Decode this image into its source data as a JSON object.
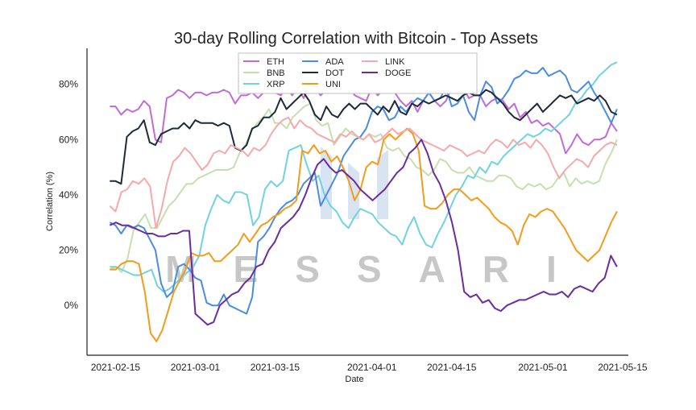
{
  "chart_data": {
    "type": "line",
    "title": "30-day Rolling Correlation with Bitcoin - Top Assets",
    "xlabel": "Date",
    "ylabel": "Correlation (%)",
    "ylim": [
      -18,
      93
    ],
    "yticks": [
      0,
      20,
      40,
      60,
      80
    ],
    "ytick_labels": [
      "0%",
      "20%",
      "40%",
      "60%",
      "80%"
    ],
    "xlim": [
      "2021-02-10",
      "2021-05-16"
    ],
    "xticks": [
      "2021-02-15",
      "2021-03-01",
      "2021-03-15",
      "2021-04-01",
      "2021-04-15",
      "2021-05-01",
      "2021-05-15"
    ],
    "grid": false,
    "legend_position": "top-center",
    "legend_columns": 4,
    "watermark": "MESSARI",
    "x_start": "2021-02-14",
    "x_end": "2021-05-14",
    "series": [
      {
        "name": "ETH",
        "color": "#c06bd8",
        "values": [
          72,
          72,
          69,
          71,
          70,
          71,
          74,
          72,
          60,
          59,
          75,
          76,
          78,
          77,
          75,
          77,
          77,
          76,
          77,
          77,
          78,
          77,
          73,
          76,
          76,
          77,
          75,
          77,
          78,
          77,
          76,
          79,
          76,
          79,
          75,
          79,
          79,
          76,
          78,
          82,
          80,
          79,
          79,
          76,
          75,
          74,
          79,
          76,
          78,
          81,
          77,
          74,
          72,
          74,
          70,
          74,
          77,
          74,
          72,
          74,
          79,
          80,
          79,
          75,
          76,
          76,
          72,
          74,
          75,
          74,
          71,
          73,
          68,
          70,
          66,
          67,
          65,
          66,
          64,
          62,
          55,
          58,
          62,
          59,
          58,
          60,
          60,
          61,
          66,
          63
        ]
      },
      {
        "name": "BNB",
        "color": "#c5dfae",
        "values": [
          13,
          14,
          12,
          17,
          27,
          30,
          33,
          28,
          28,
          32,
          36,
          38,
          41,
          44,
          44,
          46,
          47,
          48,
          49,
          49,
          49,
          50,
          55,
          58,
          63,
          66,
          68,
          71,
          66,
          66,
          64,
          68,
          70,
          72,
          73,
          67,
          65,
          66,
          58,
          61,
          64,
          62,
          61,
          60,
          62,
          61,
          62,
          57,
          56,
          57,
          54,
          53,
          50,
          49,
          47,
          49,
          53,
          52,
          49,
          48,
          48,
          50,
          47,
          46,
          45,
          45,
          47,
          47,
          46,
          43,
          42,
          44,
          43,
          44,
          42,
          43,
          46,
          48,
          43,
          46,
          44,
          45,
          44,
          45,
          51,
          55,
          60
        ]
      },
      {
        "name": "XRP",
        "color": "#6fd3df",
        "values": [
          14,
          14,
          13,
          12,
          11,
          11,
          12,
          13,
          7,
          5,
          6,
          8,
          10,
          12,
          14,
          18,
          29,
          35,
          40,
          38,
          37,
          41,
          41,
          40,
          29,
          32,
          42,
          45,
          43,
          45,
          56,
          57,
          58,
          51,
          45,
          47,
          40,
          36,
          34,
          30,
          28,
          32,
          35,
          34,
          33,
          30,
          28,
          26,
          25,
          22,
          28,
          32,
          26,
          22,
          21,
          26,
          30,
          35,
          40,
          43,
          47,
          46,
          50,
          48,
          52,
          51,
          54,
          56,
          58,
          60,
          62,
          61,
          62,
          64,
          63,
          65,
          67,
          69,
          73,
          75,
          78,
          80,
          83,
          85,
          87,
          88
        ]
      },
      {
        "name": "ADA",
        "color": "#4b8be5",
        "values": [
          30,
          29,
          26,
          29,
          28,
          29,
          28,
          24,
          20,
          8,
          3,
          5,
          14,
          15,
          13,
          10,
          9,
          1,
          0,
          0,
          4,
          0,
          -1,
          -2,
          -3,
          3,
          23,
          25,
          28,
          32,
          35,
          37,
          38,
          40,
          44,
          46,
          48,
          36,
          40,
          44,
          48,
          54,
          57,
          60,
          61,
          64,
          70,
          72,
          71,
          67,
          68,
          72,
          70,
          73,
          75,
          74,
          77,
          74,
          75,
          79,
          72,
          73,
          76,
          70,
          67,
          76,
          81,
          79,
          73,
          75,
          78,
          82,
          83,
          85,
          84,
          84,
          86,
          83,
          84,
          85,
          83,
          78,
          77,
          79,
          81,
          77,
          74,
          70,
          66,
          71
        ]
      },
      {
        "name": "DOT",
        "color": "#1e2a3a",
        "values": [
          45,
          45,
          44,
          61,
          63,
          64,
          67,
          59,
          58,
          62,
          63,
          64,
          64,
          66,
          64,
          67,
          66,
          66,
          66,
          65,
          66,
          65,
          57,
          56,
          58,
          64,
          65,
          68,
          68,
          70,
          75,
          71,
          73,
          75,
          77,
          74,
          69,
          67,
          72,
          69,
          68,
          71,
          73,
          71,
          73,
          73,
          71,
          69,
          72,
          70,
          74,
          70,
          69,
          73,
          72,
          74,
          73,
          74,
          75,
          76,
          75,
          74,
          76,
          77,
          76,
          76,
          78,
          77,
          75,
          73,
          70,
          68,
          67,
          69,
          71,
          73,
          70,
          72,
          74,
          76,
          75,
          76,
          73,
          74,
          75,
          74,
          76,
          74,
          70,
          69
        ]
      },
      {
        "name": "UNI",
        "color": "#f29c1c",
        "values": [
          13,
          13,
          15,
          16,
          16,
          15,
          5,
          -10,
          -13,
          -9,
          -2,
          5,
          9,
          13,
          19,
          18,
          18,
          19,
          16,
          16,
          18,
          20,
          22,
          26,
          23,
          26,
          29,
          30,
          32,
          33,
          35,
          36,
          38,
          56,
          55,
          58,
          55,
          56,
          52,
          54,
          50,
          45,
          38,
          42,
          50,
          52,
          51,
          60,
          62,
          60,
          62,
          64,
          62,
          56,
          36,
          35,
          35,
          37,
          40,
          42,
          42,
          40,
          38,
          39,
          37,
          35,
          32,
          30,
          29,
          27,
          22,
          29,
          33,
          32,
          34,
          35,
          34,
          31,
          28,
          24,
          20,
          18,
          16,
          18,
          20,
          25,
          30,
          34
        ]
      },
      {
        "name": "LINK",
        "color": "#f6a9a9",
        "values": [
          36,
          34,
          41,
          42,
          45,
          44,
          46,
          43,
          28,
          35,
          45,
          52,
          54,
          57,
          55,
          52,
          49,
          51,
          55,
          56,
          55,
          58,
          57,
          56,
          54,
          57,
          56,
          58,
          62,
          65,
          67,
          68,
          64,
          67,
          65,
          64,
          62,
          61,
          60,
          59,
          62,
          61,
          63,
          61,
          60,
          62,
          59,
          60,
          62,
          64,
          62,
          63,
          64,
          62,
          60,
          59,
          58,
          57,
          56,
          58,
          57,
          56,
          54,
          55,
          56,
          55,
          58,
          60,
          59,
          57,
          60,
          58,
          59,
          57,
          60,
          58,
          55,
          50,
          46,
          49,
          51,
          53,
          52,
          50,
          54,
          56,
          58,
          59,
          58
        ]
      },
      {
        "name": "DOGE",
        "color": "#6a2c9e",
        "values": [
          29,
          30,
          29,
          29,
          28,
          27,
          26,
          26,
          25,
          25,
          26,
          26,
          27,
          27,
          -3,
          -5,
          -7,
          -6,
          0,
          2,
          4,
          5,
          8,
          10,
          14,
          15,
          20,
          23,
          28,
          30,
          32,
          35,
          40,
          46,
          51,
          53,
          50,
          48,
          49,
          47,
          45,
          42,
          40,
          38,
          40,
          42,
          45,
          48,
          50,
          55,
          57,
          60,
          55,
          48,
          44,
          38,
          30,
          20,
          5,
          3,
          4,
          1,
          2,
          -1,
          -2,
          0,
          1,
          2,
          2,
          3,
          4,
          5,
          4,
          4,
          5,
          3,
          6,
          7,
          6,
          5,
          8,
          10,
          18,
          14
        ]
      }
    ]
  }
}
